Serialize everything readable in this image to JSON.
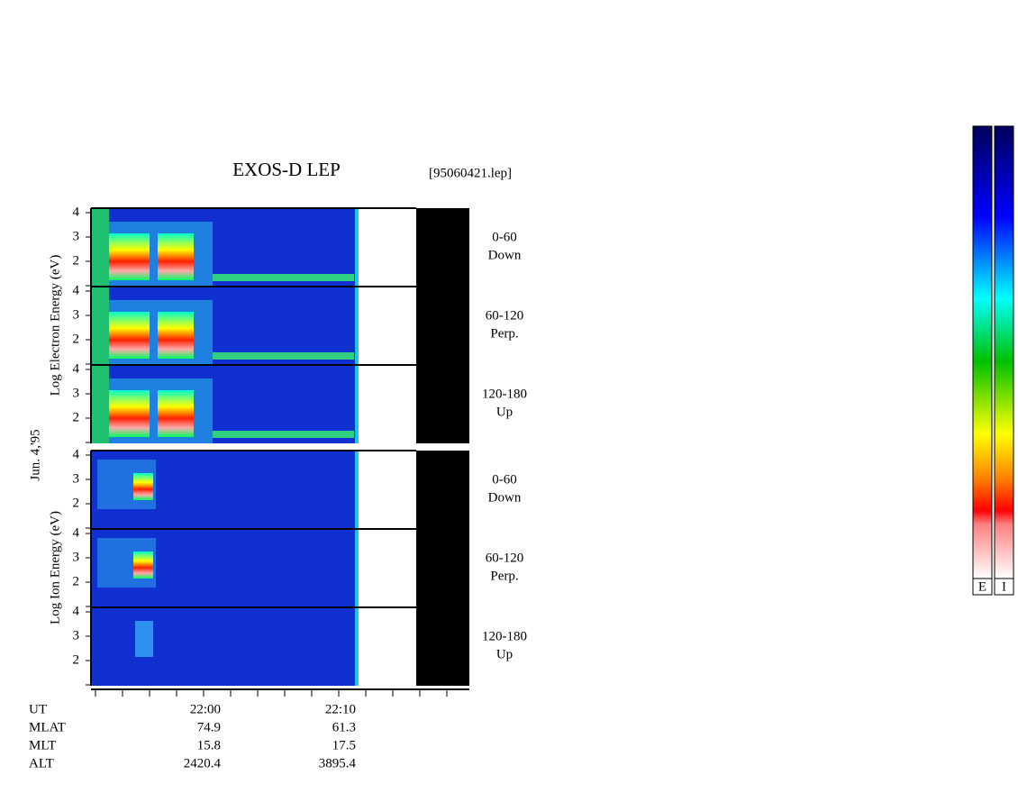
{
  "title": "EXOS-D LEP",
  "file": "[95060421.lep]",
  "date": "Jun. 4,'95",
  "groups": [
    {
      "axis_label": "Log  Electron  Energy (eV)",
      "yticks": [
        "4",
        "3",
        "2"
      ],
      "panels": [
        {
          "range": "0-60",
          "direction": "Down"
        },
        {
          "range": "60-120",
          "direction": "Perp."
        },
        {
          "range": "120-180",
          "direction": "Up"
        }
      ]
    },
    {
      "axis_label": "Log  Ion  Energy (eV)",
      "yticks": [
        "4",
        "3",
        "2"
      ],
      "panels": [
        {
          "range": "0-60",
          "direction": "Down"
        },
        {
          "range": "60-120",
          "direction": "Perp."
        },
        {
          "range": "120-180",
          "direction": "Up"
        }
      ]
    }
  ],
  "time_axis": {
    "rows": [
      {
        "label": "UT",
        "values": [
          "22:00",
          "22:10"
        ]
      },
      {
        "label": "MLAT",
        "values": [
          "74.9",
          "61.3"
        ]
      },
      {
        "label": "MLT",
        "values": [
          "15.8",
          "17.5"
        ]
      },
      {
        "label": "ALT",
        "values": [
          "2420.4",
          "3895.4"
        ]
      }
    ]
  },
  "colorbars": [
    "E",
    "I"
  ]
}
